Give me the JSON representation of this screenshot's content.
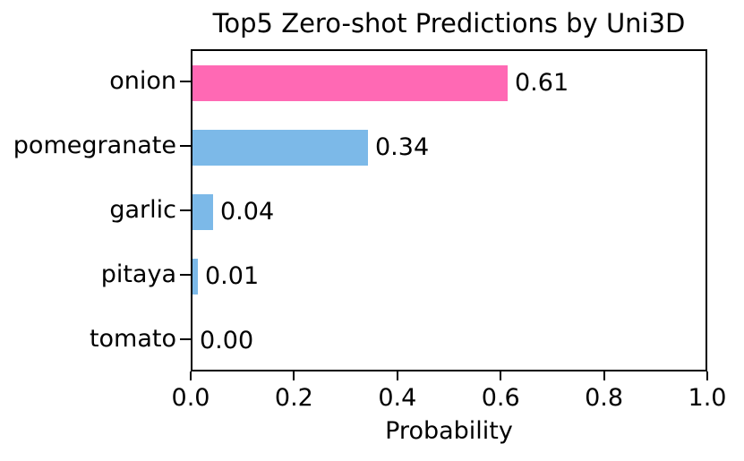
{
  "chart_data": {
    "type": "bar",
    "orientation": "horizontal",
    "title": "Top5 Zero-shot Predictions by Uni3D",
    "xlabel": "Probability",
    "ylabel": "",
    "categories": [
      "onion",
      "pomegranate",
      "garlic",
      "pitaya",
      "tomato"
    ],
    "values": [
      0.61,
      0.34,
      0.04,
      0.01,
      0.0
    ],
    "value_labels": [
      "0.61",
      "0.34",
      "0.04",
      "0.01",
      "0.00"
    ],
    "bar_colors": [
      "#FF69B4",
      "#7CB9E8",
      "#7CB9E8",
      "#7CB9E8",
      "#7CB9E8"
    ],
    "highlight_color": "#FF69B4",
    "default_color": "#7CB9E8",
    "xlim": [
      0.0,
      1.0
    ],
    "xticks": [
      0.0,
      0.2,
      0.4,
      0.6,
      0.8,
      1.0
    ],
    "xtick_labels": [
      "0.0",
      "0.2",
      "0.4",
      "0.6",
      "0.8",
      "1.0"
    ],
    "grid": false,
    "frame": true,
    "text_color": "#000000",
    "background_color": "#ffffff"
  }
}
